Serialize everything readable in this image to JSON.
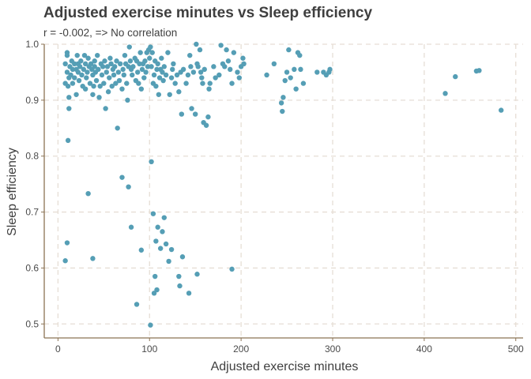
{
  "chart_data": {
    "type": "scatter",
    "title": "Adjusted exercise minutes vs Sleep efficiency",
    "subtitle": "r = -0.002, => No correlation",
    "xlabel": "Adjusted exercise minutes",
    "ylabel": "Sleep efficiency",
    "xlim": [
      -15,
      508
    ],
    "ylim": [
      0.475,
      1.0
    ],
    "xticks": [
      0,
      100,
      200,
      300,
      400,
      500
    ],
    "yticks": [
      0.5,
      0.6,
      0.7,
      0.8,
      0.9,
      1.0
    ],
    "ytick_labels": [
      "0.5",
      "0.6",
      "0.7",
      "0.8",
      "0.9",
      "1.0"
    ],
    "grid": true,
    "point_color": "#559eb5",
    "axis_color": "#8b7355",
    "grid_color": "#e6ded5",
    "points": [
      [
        8,
        0.93
      ],
      [
        8,
        0.965
      ],
      [
        10,
        0.95
      ],
      [
        10,
        0.985
      ],
      [
        10,
        0.98
      ],
      [
        11,
        0.925
      ],
      [
        12,
        0.94
      ],
      [
        12,
        0.905
      ],
      [
        12,
        0.885
      ],
      [
        13,
        0.96
      ],
      [
        14,
        0.945
      ],
      [
        15,
        0.97
      ],
      [
        16,
        0.955
      ],
      [
        16,
        0.93
      ],
      [
        18,
        0.965
      ],
      [
        18,
        0.94
      ],
      [
        20,
        0.955
      ],
      [
        20,
        0.91
      ],
      [
        21,
        0.98
      ],
      [
        22,
        0.965
      ],
      [
        22,
        0.95
      ],
      [
        23,
        0.935
      ],
      [
        24,
        0.96
      ],
      [
        25,
        0.97
      ],
      [
        26,
        0.945
      ],
      [
        27,
        0.925
      ],
      [
        28,
        0.955
      ],
      [
        29,
        0.98
      ],
      [
        30,
        0.965
      ],
      [
        30,
        0.92
      ],
      [
        31,
        0.94
      ],
      [
        32,
        0.95
      ],
      [
        33,
        0.975
      ],
      [
        34,
        0.96
      ],
      [
        35,
        0.93
      ],
      [
        36,
        0.965
      ],
      [
        37,
        0.955
      ],
      [
        38,
        0.945
      ],
      [
        38,
        0.91
      ],
      [
        39,
        0.925
      ],
      [
        40,
        0.96
      ],
      [
        40,
        0.97
      ],
      [
        41,
        0.95
      ],
      [
        42,
        0.935
      ],
      [
        43,
        0.98
      ],
      [
        44,
        0.955
      ],
      [
        45,
        0.905
      ],
      [
        46,
        0.925
      ],
      [
        47,
        0.965
      ],
      [
        48,
        0.945
      ],
      [
        49,
        0.96
      ],
      [
        50,
        0.93
      ],
      [
        51,
        0.97
      ],
      [
        52,
        0.885
      ],
      [
        53,
        0.95
      ],
      [
        54,
        0.96
      ],
      [
        55,
        0.915
      ],
      [
        56,
        0.94
      ],
      [
        57,
        0.975
      ],
      [
        58,
        0.965
      ],
      [
        59,
        0.925
      ],
      [
        60,
        0.955
      ],
      [
        61,
        0.945
      ],
      [
        62,
        0.96
      ],
      [
        63,
        0.93
      ],
      [
        64,
        0.97
      ],
      [
        65,
        0.85
      ],
      [
        66,
        0.95
      ],
      [
        67,
        0.935
      ],
      [
        68,
        0.965
      ],
      [
        70,
        0.92
      ],
      [
        71,
        0.955
      ],
      [
        72,
        0.945
      ],
      [
        73,
        0.98
      ],
      [
        74,
        0.965
      ],
      [
        75,
        0.93
      ],
      [
        76,
        0.9
      ],
      [
        77,
        0.96
      ],
      [
        78,
        0.995
      ],
      [
        79,
        0.97
      ],
      [
        80,
        0.955
      ],
      [
        81,
        0.945
      ],
      [
        82,
        0.96
      ],
      [
        84,
        0.975
      ],
      [
        85,
        0.935
      ],
      [
        86,
        0.97
      ],
      [
        87,
        0.95
      ],
      [
        88,
        0.93
      ],
      [
        89,
        0.965
      ],
      [
        90,
        0.985
      ],
      [
        91,
        0.92
      ],
      [
        92,
        0.955
      ],
      [
        93,
        0.965
      ],
      [
        94,
        0.94
      ],
      [
        95,
        0.97
      ],
      [
        96,
        0.95
      ],
      [
        97,
        0.985
      ],
      [
        98,
        0.96
      ],
      [
        99,
        0.99
      ],
      [
        100,
        0.975
      ],
      [
        101,
        0.995
      ],
      [
        102,
        0.96
      ],
      [
        103,
        0.985
      ],
      [
        104,
        0.93
      ],
      [
        105,
        0.945
      ],
      [
        106,
        0.97
      ],
      [
        107,
        0.925
      ],
      [
        108,
        0.955
      ],
      [
        109,
        0.965
      ],
      [
        110,
        0.91
      ],
      [
        111,
        0.94
      ],
      [
        112,
        0.955
      ],
      [
        113,
        0.975
      ],
      [
        114,
        0.95
      ],
      [
        115,
        0.935
      ],
      [
        116,
        0.96
      ],
      [
        118,
        0.945
      ],
      [
        120,
        0.985
      ],
      [
        122,
        0.91
      ],
      [
        124,
        0.94
      ],
      [
        125,
        0.955
      ],
      [
        126,
        0.965
      ],
      [
        128,
        0.93
      ],
      [
        130,
        0.945
      ],
      [
        132,
        0.915
      ],
      [
        134,
        0.95
      ],
      [
        135,
        0.875
      ],
      [
        137,
        0.955
      ],
      [
        140,
        0.93
      ],
      [
        142,
        0.945
      ],
      [
        144,
        0.98
      ],
      [
        145,
        0.96
      ],
      [
        146,
        0.885
      ],
      [
        148,
        0.95
      ],
      [
        150,
        0.875
      ],
      [
        151,
        1.0
      ],
      [
        152,
        0.965
      ],
      [
        153,
        0.96
      ],
      [
        155,
        0.99
      ],
      [
        156,
        0.95
      ],
      [
        157,
        0.94
      ],
      [
        158,
        0.93
      ],
      [
        159,
        0.86
      ],
      [
        160,
        0.955
      ],
      [
        162,
        0.855
      ],
      [
        164,
        0.87
      ],
      [
        165,
        0.92
      ],
      [
        166,
        0.93
      ],
      [
        170,
        0.96
      ],
      [
        172,
        0.94
      ],
      [
        176,
        0.945
      ],
      [
        178,
        0.998
      ],
      [
        180,
        0.965
      ],
      [
        182,
        0.96
      ],
      [
        184,
        0.99
      ],
      [
        186,
        0.97
      ],
      [
        188,
        0.955
      ],
      [
        190,
        0.93
      ],
      [
        192,
        0.985
      ],
      [
        196,
        0.95
      ],
      [
        198,
        0.94
      ],
      [
        200,
        0.96
      ],
      [
        202,
        0.975
      ],
      [
        203,
        0.965
      ],
      [
        228,
        0.945
      ],
      [
        236,
        0.965
      ],
      [
        244,
        0.895
      ],
      [
        245,
        0.88
      ],
      [
        246,
        0.905
      ],
      [
        248,
        0.935
      ],
      [
        250,
        0.95
      ],
      [
        252,
        0.99
      ],
      [
        254,
        0.94
      ],
      [
        258,
        0.955
      ],
      [
        260,
        0.92
      ],
      [
        262,
        0.985
      ],
      [
        264,
        0.98
      ],
      [
        265,
        0.955
      ],
      [
        268,
        0.93
      ],
      [
        283,
        0.95
      ],
      [
        290,
        0.95
      ],
      [
        293,
        0.945
      ],
      [
        296,
        0.95
      ],
      [
        297,
        0.955
      ],
      [
        423,
        0.912
      ],
      [
        434,
        0.942
      ],
      [
        457,
        0.952
      ],
      [
        460,
        0.953
      ],
      [
        484,
        0.882
      ],
      [
        8,
        0.613
      ],
      [
        10,
        0.645
      ],
      [
        11,
        0.828
      ],
      [
        33,
        0.733
      ],
      [
        38,
        0.617
      ],
      [
        70,
        0.762
      ],
      [
        77,
        0.745
      ],
      [
        80,
        0.673
      ],
      [
        86,
        0.535
      ],
      [
        91,
        0.632
      ],
      [
        101,
        0.498
      ],
      [
        102,
        0.79
      ],
      [
        104,
        0.697
      ],
      [
        105,
        0.555
      ],
      [
        106,
        0.585
      ],
      [
        107,
        0.648
      ],
      [
        108,
        0.561
      ],
      [
        109,
        0.673
      ],
      [
        112,
        0.635
      ],
      [
        114,
        0.665
      ],
      [
        116,
        0.69
      ],
      [
        118,
        0.643
      ],
      [
        121,
        0.612
      ],
      [
        124,
        0.633
      ],
      [
        132,
        0.585
      ],
      [
        133,
        0.568
      ],
      [
        136,
        0.62
      ],
      [
        143,
        0.555
      ],
      [
        152,
        0.589
      ],
      [
        190,
        0.598
      ]
    ]
  }
}
